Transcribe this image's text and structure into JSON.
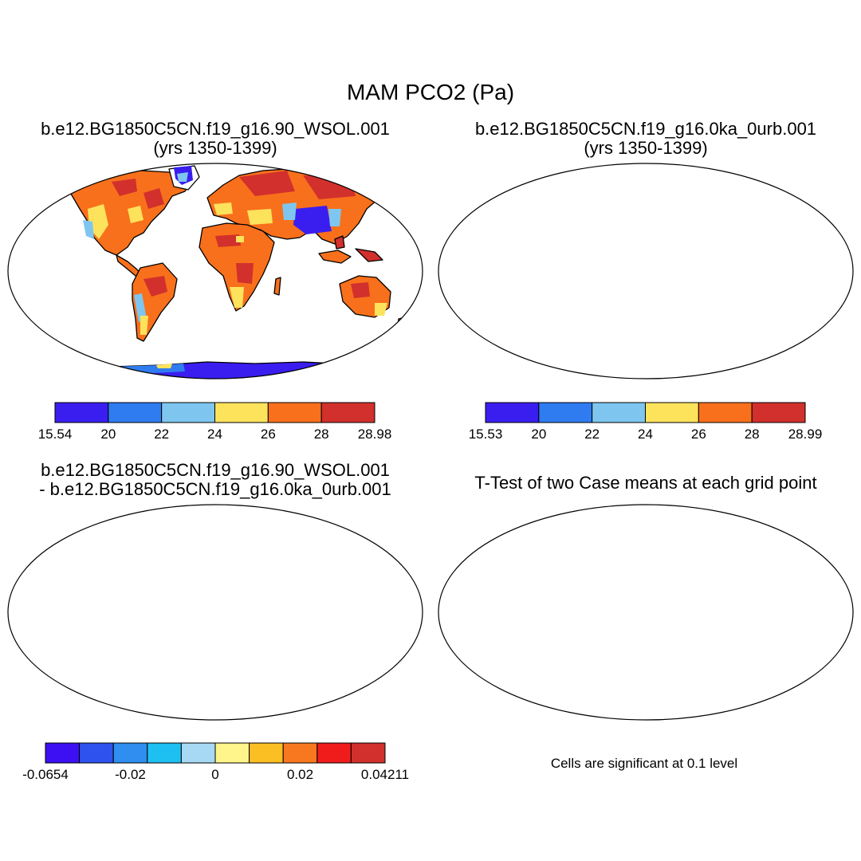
{
  "figure": {
    "title": "MAM PCO2 (Pa)",
    "panels": [
      {
        "id": "case1",
        "title_line1": "b.e12.BG1850C5CN.f19_g16.90_WSOL.001",
        "title_line2": "(yrs 1350-1399)",
        "colorbar": {
          "colors": [
            "#3a1ef0",
            "#2f7cf0",
            "#7ec6ef",
            "#fde25c",
            "#f8701c",
            "#d2302c"
          ],
          "tick_labels": [
            "15.54",
            "20",
            "22",
            "24",
            "26",
            "28",
            "28.98"
          ]
        }
      },
      {
        "id": "case2",
        "title_line1": "b.e12.BG1850C5CN.f19_g16.0ka_0urb.001",
        "title_line2": "(yrs 1350-1399)",
        "colorbar": {
          "colors": [
            "#3a1ef0",
            "#2f7cf0",
            "#7ec6ef",
            "#fde25c",
            "#f8701c",
            "#d2302c"
          ],
          "tick_labels": [
            "15.53",
            "20",
            "22",
            "24",
            "26",
            "28",
            "28.99"
          ]
        }
      },
      {
        "id": "difference",
        "title_line1": "b.e12.BG1850C5CN.f19_g16.90_WSOL.001",
        "title_line2": "- b.e12.BG1850C5CN.f19_g16.0ka_0urb.001",
        "colorbar": {
          "colors": [
            "#3c10f2",
            "#2e52ee",
            "#2f8ef0",
            "#1ec0f2",
            "#a8d9f4",
            "#fff58a",
            "#fbbf24",
            "#f87820",
            "#f01c1c",
            "#d2302c"
          ],
          "tick_labels": [
            "-0.0654",
            "-0.02",
            "0",
            "0.02",
            "0.04211"
          ]
        }
      },
      {
        "id": "ttest",
        "title_line1": "T-Test of two Case means at each grid point",
        "note": "Cells are significant at 0.1 level",
        "significant_color": "#ee0000"
      }
    ]
  }
}
